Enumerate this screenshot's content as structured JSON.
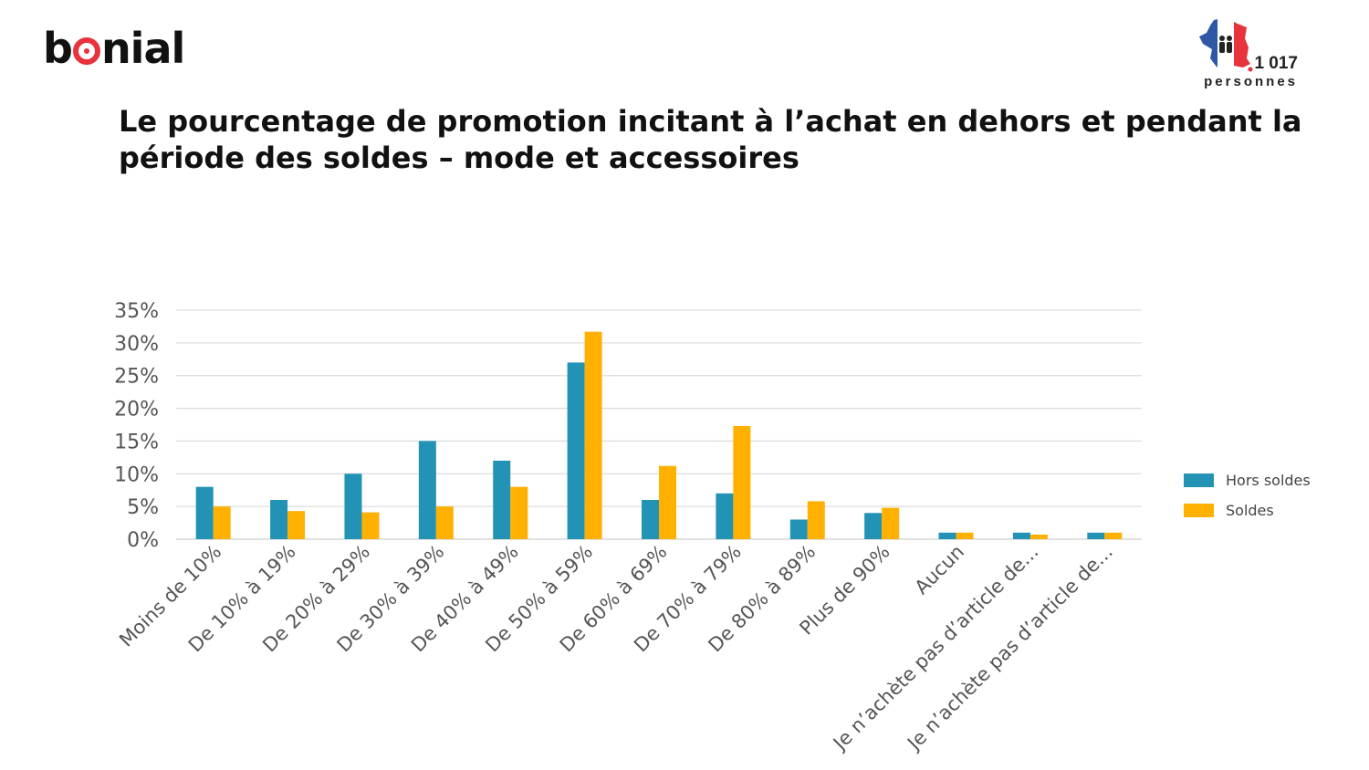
{
  "brand": {
    "logo_text": "bonial"
  },
  "badge": {
    "count": "1 017",
    "label": "personnes",
    "icon": "france-map-people-icon",
    "colors": [
      "#2e58a6",
      "#ffffff",
      "#e8323c"
    ]
  },
  "title": "Le pourcentage de promotion incitant à l’achat en dehors et pendant la période des soldes – mode et accessoires",
  "chart_data": {
    "type": "bar",
    "categories": [
      "Moins de 10%",
      "De 10% à 19%",
      "De 20% à 29%",
      "De 30% à 39%",
      "De 40% à 49%",
      "De 50% à 59%",
      "De 60% à 69%",
      "De 70% à 79%",
      "De 80% à 89%",
      "Plus de 90%",
      "Aucun",
      "Je n’achète pas d’article de...",
      "Je n’achète pas d’article de..."
    ],
    "series": [
      {
        "name": "Hors soldes",
        "color": "#2292b5",
        "values": [
          8,
          6,
          10,
          15,
          12,
          27,
          6,
          7,
          3,
          4,
          1,
          1,
          1
        ]
      },
      {
        "name": "Soldes",
        "color": "#ffb000",
        "values": [
          5,
          4.3,
          4.1,
          5,
          8,
          31.7,
          11.2,
          17.3,
          5.8,
          4.8,
          1,
          0.7,
          1
        ]
      }
    ],
    "ylim": [
      0,
      35
    ],
    "yticks": [
      "0%",
      "5%",
      "10%",
      "15%",
      "20%",
      "25%",
      "30%",
      "35%"
    ],
    "ytick_values": [
      0,
      5,
      10,
      15,
      20,
      25,
      30,
      35
    ],
    "grid": true,
    "legend_position": "right",
    "xlabel": "",
    "ylabel": ""
  }
}
